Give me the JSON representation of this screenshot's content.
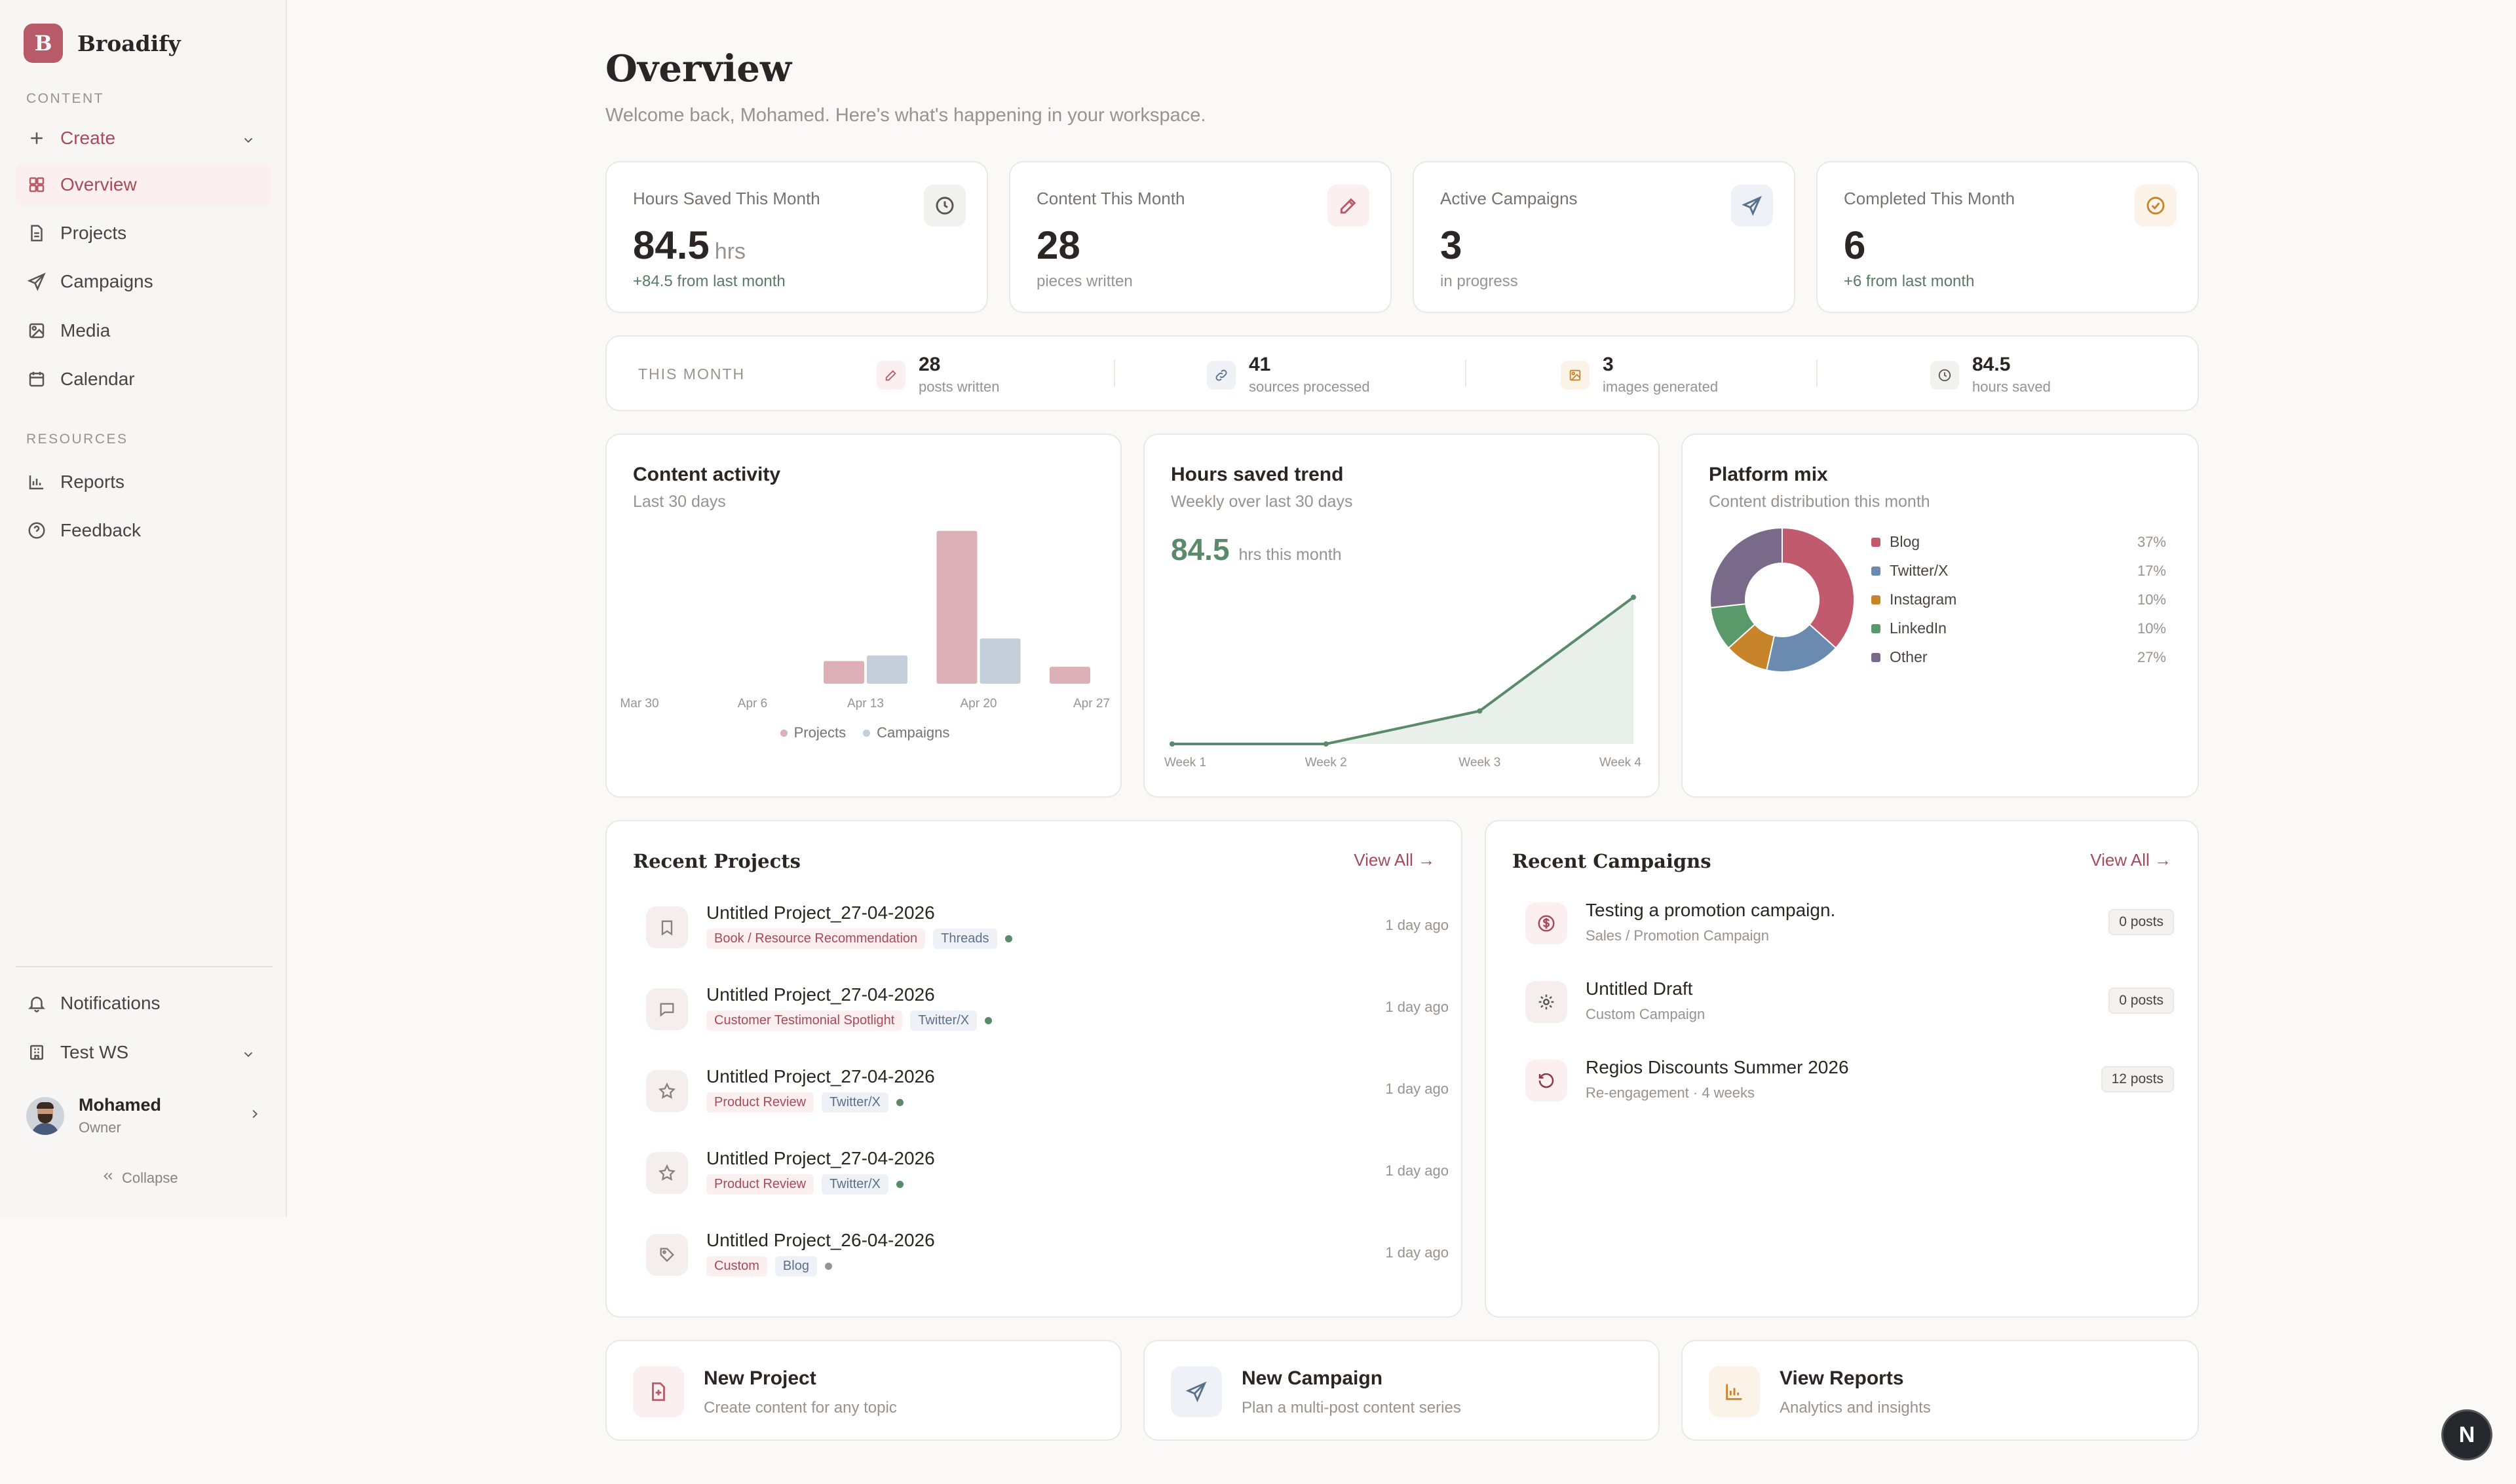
{
  "brand": {
    "logo_letter": "B",
    "name": "Broadify",
    "accent": "#b85a68"
  },
  "sidebar": {
    "content_label": "CONTENT",
    "create_label": "Create",
    "items": [
      {
        "label": "Overview",
        "icon": "grid-icon",
        "active": true
      },
      {
        "label": "Projects",
        "icon": "document-icon"
      },
      {
        "label": "Campaigns",
        "icon": "send-icon"
      },
      {
        "label": "Media",
        "icon": "image-icon"
      },
      {
        "label": "Calendar",
        "icon": "calendar-icon"
      }
    ],
    "resources_label": "RESOURCES",
    "resources": [
      {
        "label": "Reports",
        "icon": "bar-chart-icon"
      },
      {
        "label": "Feedback",
        "icon": "help-icon"
      }
    ],
    "notifications_label": "Notifications",
    "workspace_label": "Test WS",
    "user": {
      "name": "Mohamed",
      "role": "Owner"
    },
    "collapse_label": "Collapse"
  },
  "header": {
    "title": "Overview",
    "subtitle": "Welcome back, Mohamed. Here's what's happening in your workspace."
  },
  "stats": [
    {
      "label": "Hours Saved This Month",
      "value": "84.5",
      "unit": "hrs",
      "sub": "+84.5 from last month",
      "icon": "clock-icon"
    },
    {
      "label": "Content This Month",
      "value": "28",
      "unit": "",
      "sub": "pieces written",
      "icon": "pen-icon"
    },
    {
      "label": "Active Campaigns",
      "value": "3",
      "unit": "",
      "sub": "in progress",
      "icon": "send-icon"
    },
    {
      "label": "Completed This Month",
      "value": "6",
      "unit": "",
      "sub": "+6 from last month",
      "icon": "check-circle-icon"
    }
  ],
  "this_month": {
    "label": "THIS MONTH",
    "items": [
      {
        "value": "28",
        "text": "posts written",
        "icon": "pen-icon"
      },
      {
        "value": "41",
        "text": "sources processed",
        "icon": "link-icon"
      },
      {
        "value": "3",
        "text": "images generated",
        "icon": "image-icon"
      },
      {
        "value": "84.5",
        "text": "hours saved",
        "icon": "clock-icon"
      }
    ]
  },
  "content_activity": {
    "title": "Content activity",
    "subtitle": "Last 30 days"
  },
  "hours_trend": {
    "title": "Hours saved trend",
    "subtitle": "Weekly over last 30 days",
    "big_value": "84.5",
    "big_text": "hrs this month"
  },
  "platform_mix": {
    "title": "Platform mix",
    "subtitle": "Content distribution this month"
  },
  "chart_data": [
    {
      "type": "bar",
      "title": "Content activity",
      "x_tick_labels": [
        "Mar 30",
        "Apr 6",
        "Apr 13",
        "Apr 20",
        "Apr 27"
      ],
      "categories": [
        "Apr 13",
        "Apr 20",
        "Apr 27"
      ],
      "series": [
        {
          "name": "Projects",
          "color": "#ddb0b8",
          "values": [
            4,
            27,
            3
          ]
        },
        {
          "name": "Campaigns",
          "color": "#c5cedb",
          "values": [
            5,
            8,
            0
          ]
        }
      ],
      "ylim": [
        0,
        28
      ]
    },
    {
      "type": "area",
      "title": "Hours saved trend",
      "categories": [
        "Week 1",
        "Week 2",
        "Week 3",
        "Week 4"
      ],
      "values": [
        0,
        0,
        19,
        84.5
      ],
      "color": "#5a8a6a",
      "ylim": [
        0,
        84.5
      ]
    },
    {
      "type": "pie",
      "title": "Platform mix",
      "labels": [
        "Blog",
        "Twitter/X",
        "Instagram",
        "LinkedIn",
        "Other"
      ],
      "values": [
        37,
        17,
        10,
        10,
        27
      ],
      "pct_labels": [
        "37%",
        "17%",
        "10%",
        "10%",
        "27%"
      ],
      "colors": [
        "#c05a6c",
        "#6a8ab0",
        "#c8842a",
        "#5a9a6a",
        "#7a6a8a"
      ]
    }
  ],
  "recent_projects": {
    "title": "Recent Projects",
    "view_all": "View All →",
    "items": [
      {
        "name": "Untitled Project_27-04-2026",
        "tag1": "Book / Resource Recommendation",
        "tag2": "Threads",
        "time": "1 day ago",
        "icon": "bookmark-icon"
      },
      {
        "name": "Untitled Project_27-04-2026",
        "tag1": "Customer Testimonial Spotlight",
        "tag2": "Twitter/X",
        "time": "1 day ago",
        "icon": "message-icon"
      },
      {
        "name": "Untitled Project_27-04-2026",
        "tag1": "Product Review",
        "tag2": "Twitter/X",
        "time": "1 day ago",
        "icon": "star-icon"
      },
      {
        "name": "Untitled Project_27-04-2026",
        "tag1": "Product Review",
        "tag2": "Twitter/X",
        "time": "1 day ago",
        "icon": "star-icon"
      },
      {
        "name": "Untitled Project_26-04-2026",
        "tag1": "Custom",
        "tag2": "Blog",
        "time": "1 day ago",
        "icon": "tag-icon"
      }
    ]
  },
  "recent_campaigns": {
    "title": "Recent Campaigns",
    "view_all": "View All →",
    "items": [
      {
        "name": "Testing a promotion campaign.",
        "sub": "Sales / Promotion Campaign",
        "badge": "0 posts",
        "icon": "dollar-icon"
      },
      {
        "name": "Untitled Draft",
        "sub": "Custom Campaign",
        "badge": "0 posts",
        "icon": "gear-icon"
      },
      {
        "name": "Regios Discounts Summer 2026",
        "sub": "Re-engagement · 4 weeks",
        "badge": "12 posts",
        "icon": "refresh-icon"
      }
    ]
  },
  "actions": [
    {
      "title": "New Project",
      "sub": "Create content for any topic",
      "icon": "file-plus-icon"
    },
    {
      "title": "New Campaign",
      "sub": "Plan a multi-post content series",
      "icon": "send-icon"
    },
    {
      "title": "View Reports",
      "sub": "Analytics and insights",
      "icon": "bar-chart-icon"
    }
  ],
  "fab_label": "N"
}
